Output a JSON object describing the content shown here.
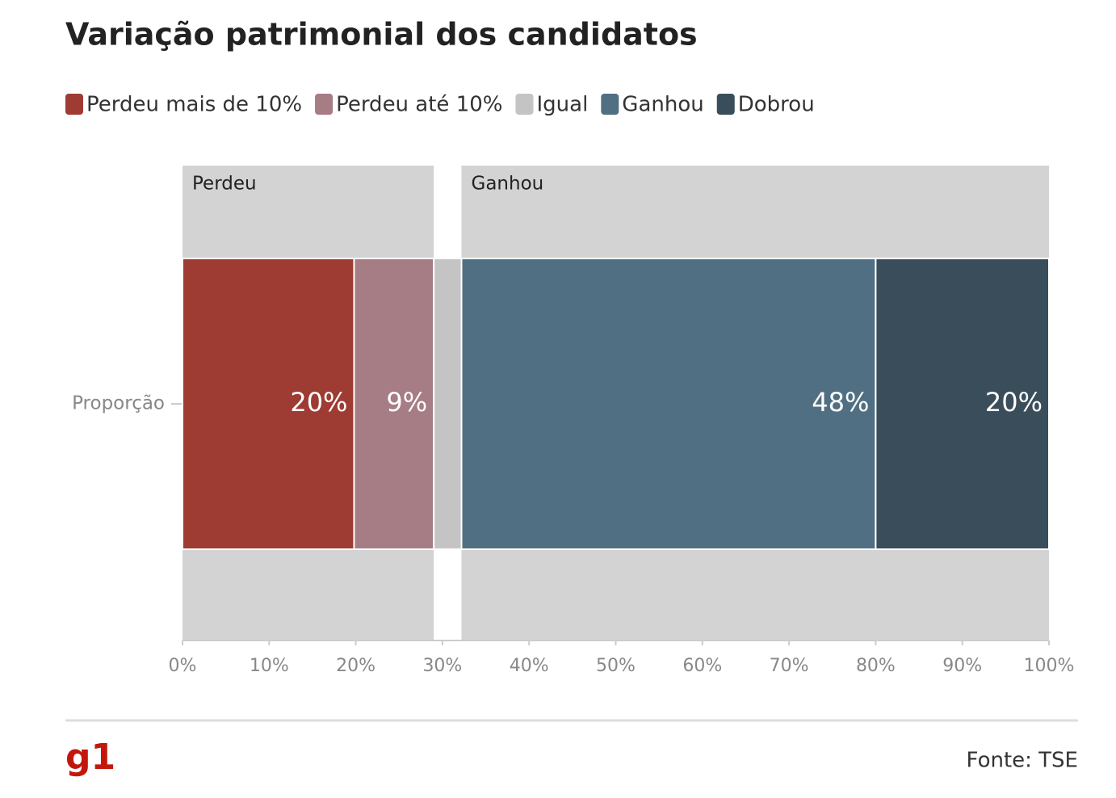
{
  "chart_data": {
    "type": "stacked-bar",
    "title": "Variação patrimonial dos candidatos",
    "categories": [
      "Proporção"
    ],
    "series": [
      {
        "name": "Perdeu mais de 10%",
        "color": "#9e3b33",
        "values": [
          19.8
        ],
        "value_labels": [
          "20%"
        ]
      },
      {
        "name": "Perdeu até 10%",
        "color": "#a67c85",
        "values": [
          9.2
        ],
        "value_labels": [
          "9%"
        ]
      },
      {
        "name": "Igual",
        "color": "#c4c4c4",
        "values": [
          3.2
        ],
        "value_labels": [
          null
        ]
      },
      {
        "name": "Ganhou",
        "color": "#516f82",
        "values": [
          47.8
        ],
        "value_labels": [
          "48%"
        ]
      },
      {
        "name": "Dobrou",
        "color": "#3a4d5a",
        "values": [
          20.0
        ],
        "value_labels": [
          "20%"
        ]
      }
    ],
    "panels": [
      "Perdeu",
      "Ganhou"
    ],
    "xlim": [
      0,
      100
    ],
    "xticks": [
      {
        "value": 0,
        "label": "0%"
      },
      {
        "value": 10,
        "label": "10%"
      },
      {
        "value": 20,
        "label": "20%"
      },
      {
        "value": 30,
        "label": "30%"
      },
      {
        "value": 40,
        "label": "40%"
      },
      {
        "value": 50,
        "label": "50%"
      },
      {
        "value": 60,
        "label": "60%"
      },
      {
        "value": 70,
        "label": "70%"
      },
      {
        "value": 80,
        "label": "80%"
      },
      {
        "value": 90,
        "label": "90%"
      },
      {
        "value": 100,
        "label": "100%"
      }
    ],
    "logo": "g1",
    "source": "Fonte: TSE"
  }
}
